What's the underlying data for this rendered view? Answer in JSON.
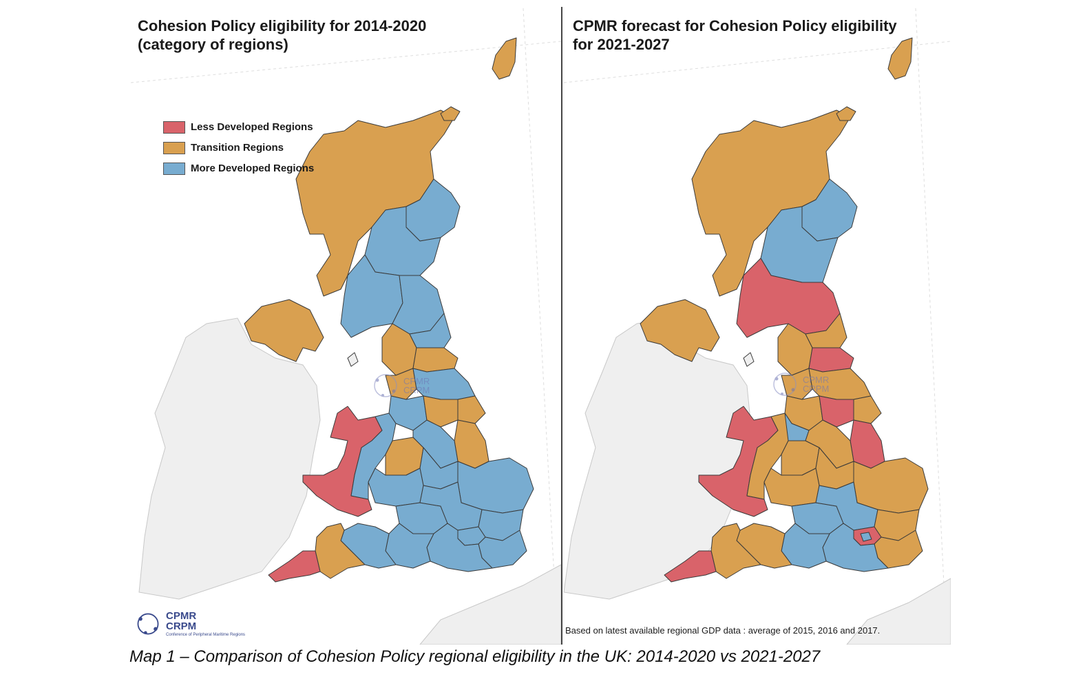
{
  "left_map": {
    "title_line1": "Cohesion Policy eligibility for 2014-2020",
    "title_line2": "(category of regions)"
  },
  "right_map": {
    "title_line1": "CPMR forecast for Cohesion Policy eligibility",
    "title_line2": "for 2021-2027",
    "source_note": "Based on latest available regional GDP data : average of 2015, 2016 and 2017."
  },
  "legend": [
    {
      "label": "Less Developed Regions",
      "color": "#d9636a"
    },
    {
      "label": "Transition Regions",
      "color": "#d9a050"
    },
    {
      "label": "More Developed Regions",
      "color": "#78acd0"
    }
  ],
  "colors": {
    "less_developed": "#d9636a",
    "transition": "#d9a050",
    "more_developed": "#78acd0",
    "other_land": "#efefef",
    "divider": "#444444"
  },
  "logo": {
    "line1": "CPMR",
    "line2": "CRPM",
    "line3": "Conference of Peripheral Maritime Regions"
  },
  "watermark": {
    "line1": "CPMR",
    "line2": "CRPM"
  },
  "caption": "Map 1 – Comparison of Cohesion Policy regional eligibility in the UK: 2014-2020 vs 2021-2027"
}
